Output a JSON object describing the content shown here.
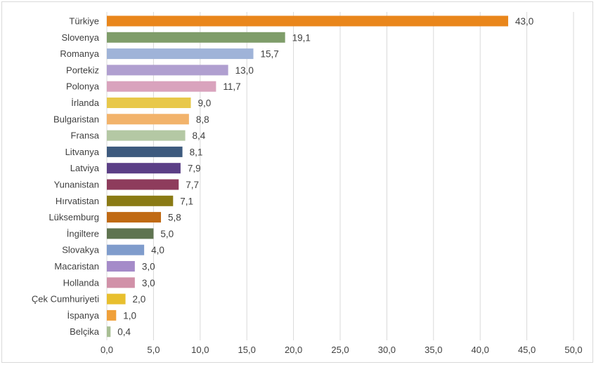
{
  "chart_data": {
    "type": "bar",
    "orientation": "horizontal",
    "categories": [
      "Türkiye",
      "Slovenya",
      "Romanya",
      "Portekiz",
      "Polonya",
      "İrlanda",
      "Bulgaristan",
      "Fransa",
      "Litvanya",
      "Latviya",
      "Yunanistan",
      "Hırvatistan",
      "Lüksemburg",
      "İngiltere",
      "Slovakya",
      "Macaristan",
      "Hollanda",
      "Çek Cumhuriyeti",
      "İspanya",
      "Belçika"
    ],
    "values": [
      43.0,
      19.1,
      15.7,
      13.0,
      11.7,
      9.0,
      8.8,
      8.4,
      8.1,
      7.9,
      7.7,
      7.1,
      5.8,
      5.0,
      4.0,
      3.0,
      3.0,
      2.0,
      1.0,
      0.4
    ],
    "value_labels": [
      "43,0",
      "19,1",
      "15,7",
      "13,0",
      "11,7",
      "9,0",
      "8,8",
      "8,4",
      "8,1",
      "7,9",
      "7,7",
      "7,1",
      "5,8",
      "5,0",
      "4,0",
      "3,0",
      "3,0",
      "2,0",
      "1,0",
      "0,4"
    ],
    "colors": [
      "#e9861b",
      "#7f9d6a",
      "#9fb3d8",
      "#b09fd0",
      "#d9a3bd",
      "#e8c84a",
      "#f2b36b",
      "#b4c8a4",
      "#3d5a7e",
      "#5b3f86",
      "#8e3c5c",
      "#8a7a14",
      "#c06a14",
      "#5f7450",
      "#7f9ccc",
      "#a58bc9",
      "#d191a8",
      "#e8bf2e",
      "#f0a03a",
      "#a8bf94"
    ],
    "xlim": [
      0,
      50
    ],
    "ticks": [
      0,
      5,
      10,
      15,
      20,
      25,
      30,
      35,
      40,
      45,
      50
    ],
    "tick_labels": [
      "0,0",
      "5,0",
      "10,0",
      "15,0",
      "20,0",
      "25,0",
      "30,0",
      "35,0",
      "40,0",
      "45,0",
      "50,0"
    ],
    "grid": "vertical",
    "title": "",
    "xlabel": "",
    "ylabel": ""
  }
}
